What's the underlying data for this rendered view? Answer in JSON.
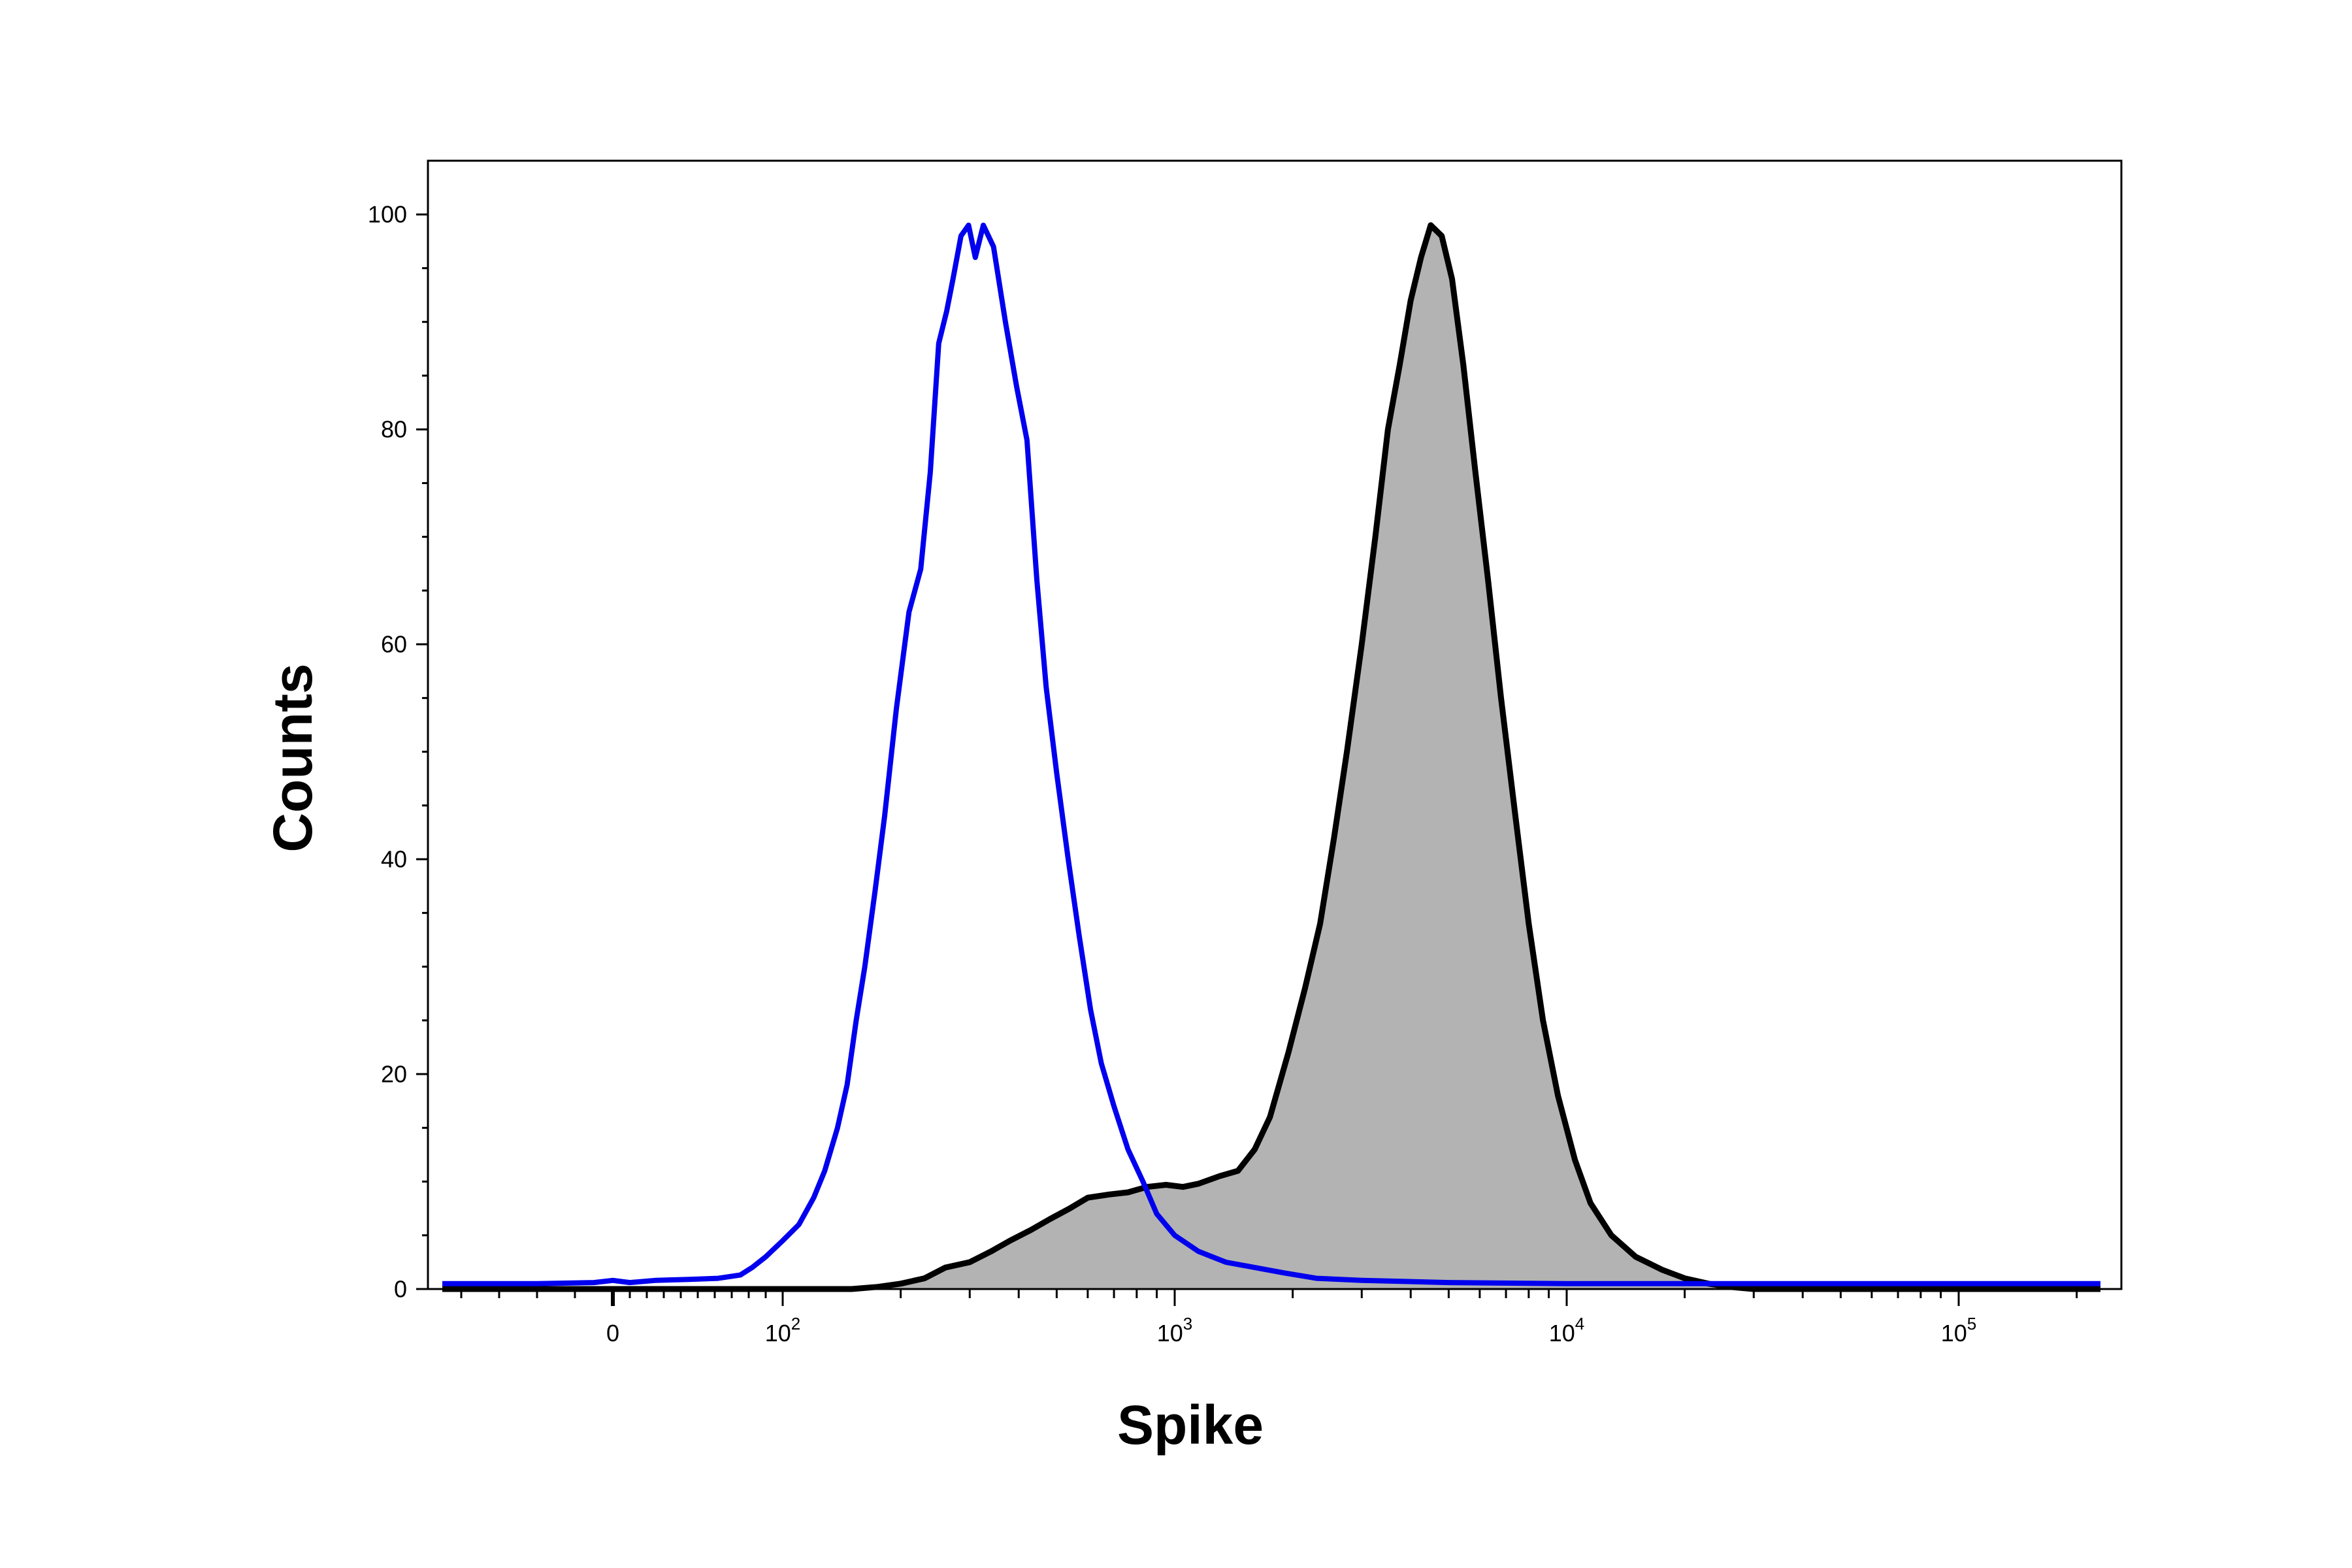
{
  "chart_data": {
    "type": "area",
    "xlabel": "Spike",
    "ylabel": "Counts",
    "ylim": [
      0,
      105
    ],
    "x_scale": "logicle",
    "x_range": [
      -45,
      250000
    ],
    "grid": false,
    "legend": "none",
    "x_ticks": [
      {
        "value": 0,
        "label": "0"
      },
      {
        "value": 100,
        "base": "10",
        "exp": "2"
      },
      {
        "value": 1000,
        "base": "10",
        "exp": "3"
      },
      {
        "value": 10000,
        "base": "10",
        "exp": "4"
      },
      {
        "value": 100000,
        "base": "10",
        "exp": "5"
      }
    ],
    "y_ticks": [
      0,
      20,
      40,
      60,
      80,
      100
    ],
    "series": [
      {
        "color": "#0000ee",
        "fill": "none",
        "points": [
          [
            -45,
            0.5
          ],
          [
            -20,
            0.5
          ],
          [
            -5,
            0.6
          ],
          [
            0,
            0.8
          ],
          [
            10,
            0.6
          ],
          [
            25,
            0.8
          ],
          [
            45,
            0.9
          ],
          [
            62,
            1.0
          ],
          [
            75,
            1.3
          ],
          [
            82,
            2.0
          ],
          [
            90,
            3.0
          ],
          [
            100,
            4.5
          ],
          [
            110,
            6.0
          ],
          [
            120,
            8.5
          ],
          [
            128,
            11.0
          ],
          [
            138,
            15.0
          ],
          [
            146,
            19.0
          ],
          [
            154,
            25.0
          ],
          [
            162,
            30.0
          ],
          [
            172,
            37.0
          ],
          [
            182,
            44.0
          ],
          [
            195,
            54.0
          ],
          [
            210,
            63.0
          ],
          [
            225,
            67.0
          ],
          [
            238,
            76.0
          ],
          [
            250,
            88.0
          ],
          [
            262,
            91.0
          ],
          [
            272,
            94.0
          ],
          [
            285,
            98.0
          ],
          [
            298,
            99.0
          ],
          [
            310,
            96.0
          ],
          [
            325,
            99.0
          ],
          [
            345,
            97.0
          ],
          [
            370,
            90.0
          ],
          [
            395,
            84.0
          ],
          [
            420,
            79.0
          ],
          [
            445,
            66.0
          ],
          [
            470,
            56.0
          ],
          [
            500,
            48.0
          ],
          [
            535,
            40.0
          ],
          [
            570,
            33.0
          ],
          [
            610,
            26.0
          ],
          [
            650,
            21.0
          ],
          [
            700,
            17.0
          ],
          [
            760,
            13.0
          ],
          [
            830,
            10.0
          ],
          [
            900,
            7.0
          ],
          [
            1000,
            5.0
          ],
          [
            1150,
            3.5
          ],
          [
            1350,
            2.5
          ],
          [
            1600,
            2.0
          ],
          [
            1900,
            1.5
          ],
          [
            2300,
            1.0
          ],
          [
            3000,
            0.8
          ],
          [
            5000,
            0.6
          ],
          [
            10000,
            0.5
          ],
          [
            50000,
            0.5
          ],
          [
            230000,
            0.5
          ]
        ]
      },
      {
        "color": "#000000",
        "fill": "#b3b3b3",
        "points": [
          [
            -45,
            0.0
          ],
          [
            150,
            0.0
          ],
          [
            175,
            0.2
          ],
          [
            200,
            0.5
          ],
          [
            230,
            1.0
          ],
          [
            260,
            2.0
          ],
          [
            300,
            2.5
          ],
          [
            340,
            3.5
          ],
          [
            380,
            4.5
          ],
          [
            430,
            5.5
          ],
          [
            480,
            6.5
          ],
          [
            540,
            7.5
          ],
          [
            600,
            8.5
          ],
          [
            680,
            8.8
          ],
          [
            760,
            9.0
          ],
          [
            850,
            9.5
          ],
          [
            950,
            9.7
          ],
          [
            1050,
            9.5
          ],
          [
            1150,
            9.8
          ],
          [
            1300,
            10.5
          ],
          [
            1450,
            11.0
          ],
          [
            1600,
            13.0
          ],
          [
            1750,
            16.0
          ],
          [
            1950,
            22.0
          ],
          [
            2150,
            28.0
          ],
          [
            2350,
            34.0
          ],
          [
            2550,
            42.0
          ],
          [
            2750,
            50.0
          ],
          [
            3000,
            60.0
          ],
          [
            3250,
            70.0
          ],
          [
            3500,
            80.0
          ],
          [
            3750,
            86.0
          ],
          [
            4000,
            92.0
          ],
          [
            4250,
            96.0
          ],
          [
            4500,
            99.0
          ],
          [
            4800,
            98.0
          ],
          [
            5100,
            94.0
          ],
          [
            5450,
            86.0
          ],
          [
            5850,
            76.0
          ],
          [
            6300,
            66.0
          ],
          [
            6800,
            55.0
          ],
          [
            7400,
            44.0
          ],
          [
            8000,
            34.0
          ],
          [
            8700,
            25.0
          ],
          [
            9500,
            18.0
          ],
          [
            10500,
            12.0
          ],
          [
            11500,
            8.0
          ],
          [
            13000,
            5.0
          ],
          [
            15000,
            3.0
          ],
          [
            17500,
            1.8
          ],
          [
            20000,
            1.0
          ],
          [
            23000,
            0.5
          ],
          [
            26000,
            0.2
          ],
          [
            30000,
            0.0
          ],
          [
            230000,
            0.0
          ]
        ]
      }
    ]
  }
}
